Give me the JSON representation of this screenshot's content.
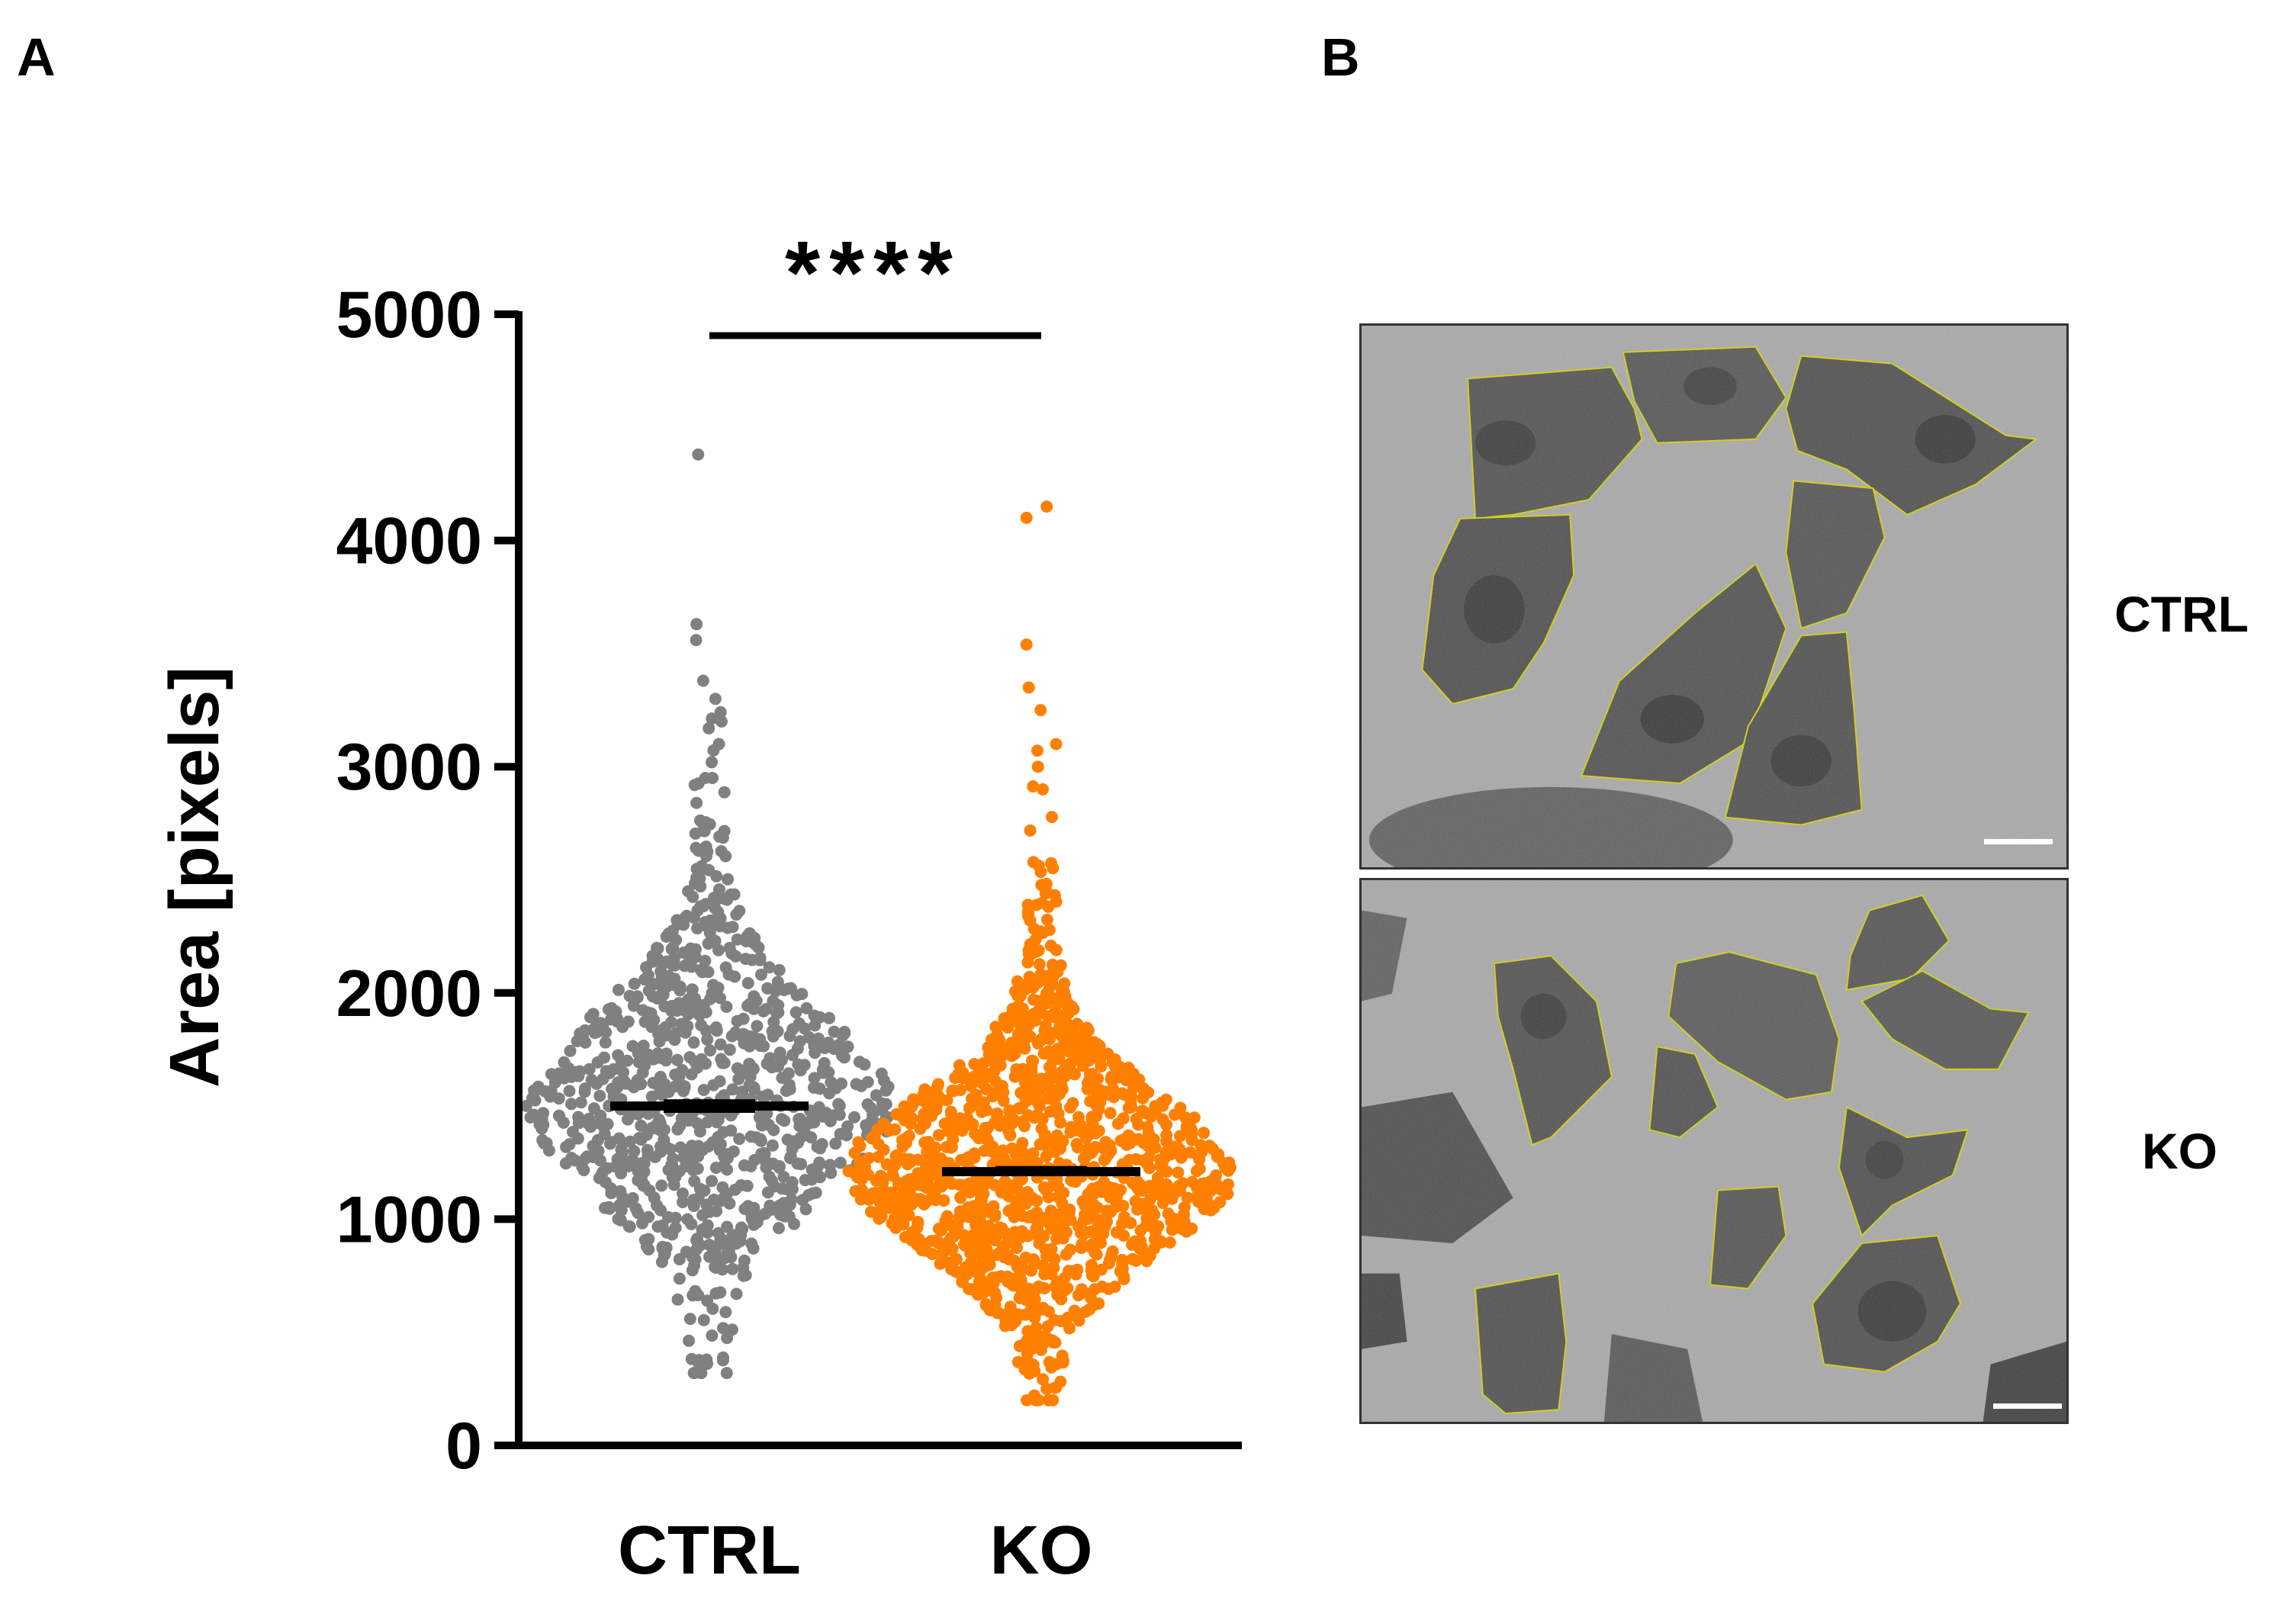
{
  "panels": {
    "a_label": "A",
    "b_label": "B"
  },
  "chart_data": {
    "type": "scatter",
    "subtype": "swarm-dot-plot",
    "title": "",
    "xlabel": "",
    "ylabel": "Area [pixels]",
    "ylim": [
      0,
      5000
    ],
    "yticks": [
      0,
      1000,
      2000,
      3000,
      4000,
      5000
    ],
    "categories": [
      "CTRL",
      "KO"
    ],
    "series": [
      {
        "name": "CTRL",
        "color": "#808080",
        "mean": 1500,
        "sem_low": 1470,
        "sem_high": 1530,
        "min": 320,
        "max": 4380,
        "outliers": [
          4380,
          3630,
          3560,
          3380,
          3300,
          3200,
          3100,
          3020,
          2950
        ]
      },
      {
        "name": "KO",
        "color": "#ff8000",
        "mean": 1210,
        "sem_low": 1190,
        "sem_high": 1235,
        "min": 200,
        "max": 4150,
        "outliers": [
          4150,
          4100,
          3540,
          3350,
          3250,
          3100,
          3000,
          2900
        ]
      }
    ],
    "significance": {
      "label": "****",
      "between": [
        "CTRL",
        "KO"
      ]
    },
    "grid": false,
    "legend": "none"
  },
  "image_panels": [
    {
      "label": "CTRL",
      "border_color": "#333333",
      "outline_color": "#d4d400",
      "scalebar_color": "#ffffff"
    },
    {
      "label": "KO",
      "border_color": "#333333",
      "outline_color": "#d4d400",
      "scalebar_color": "#ffffff"
    }
  ]
}
